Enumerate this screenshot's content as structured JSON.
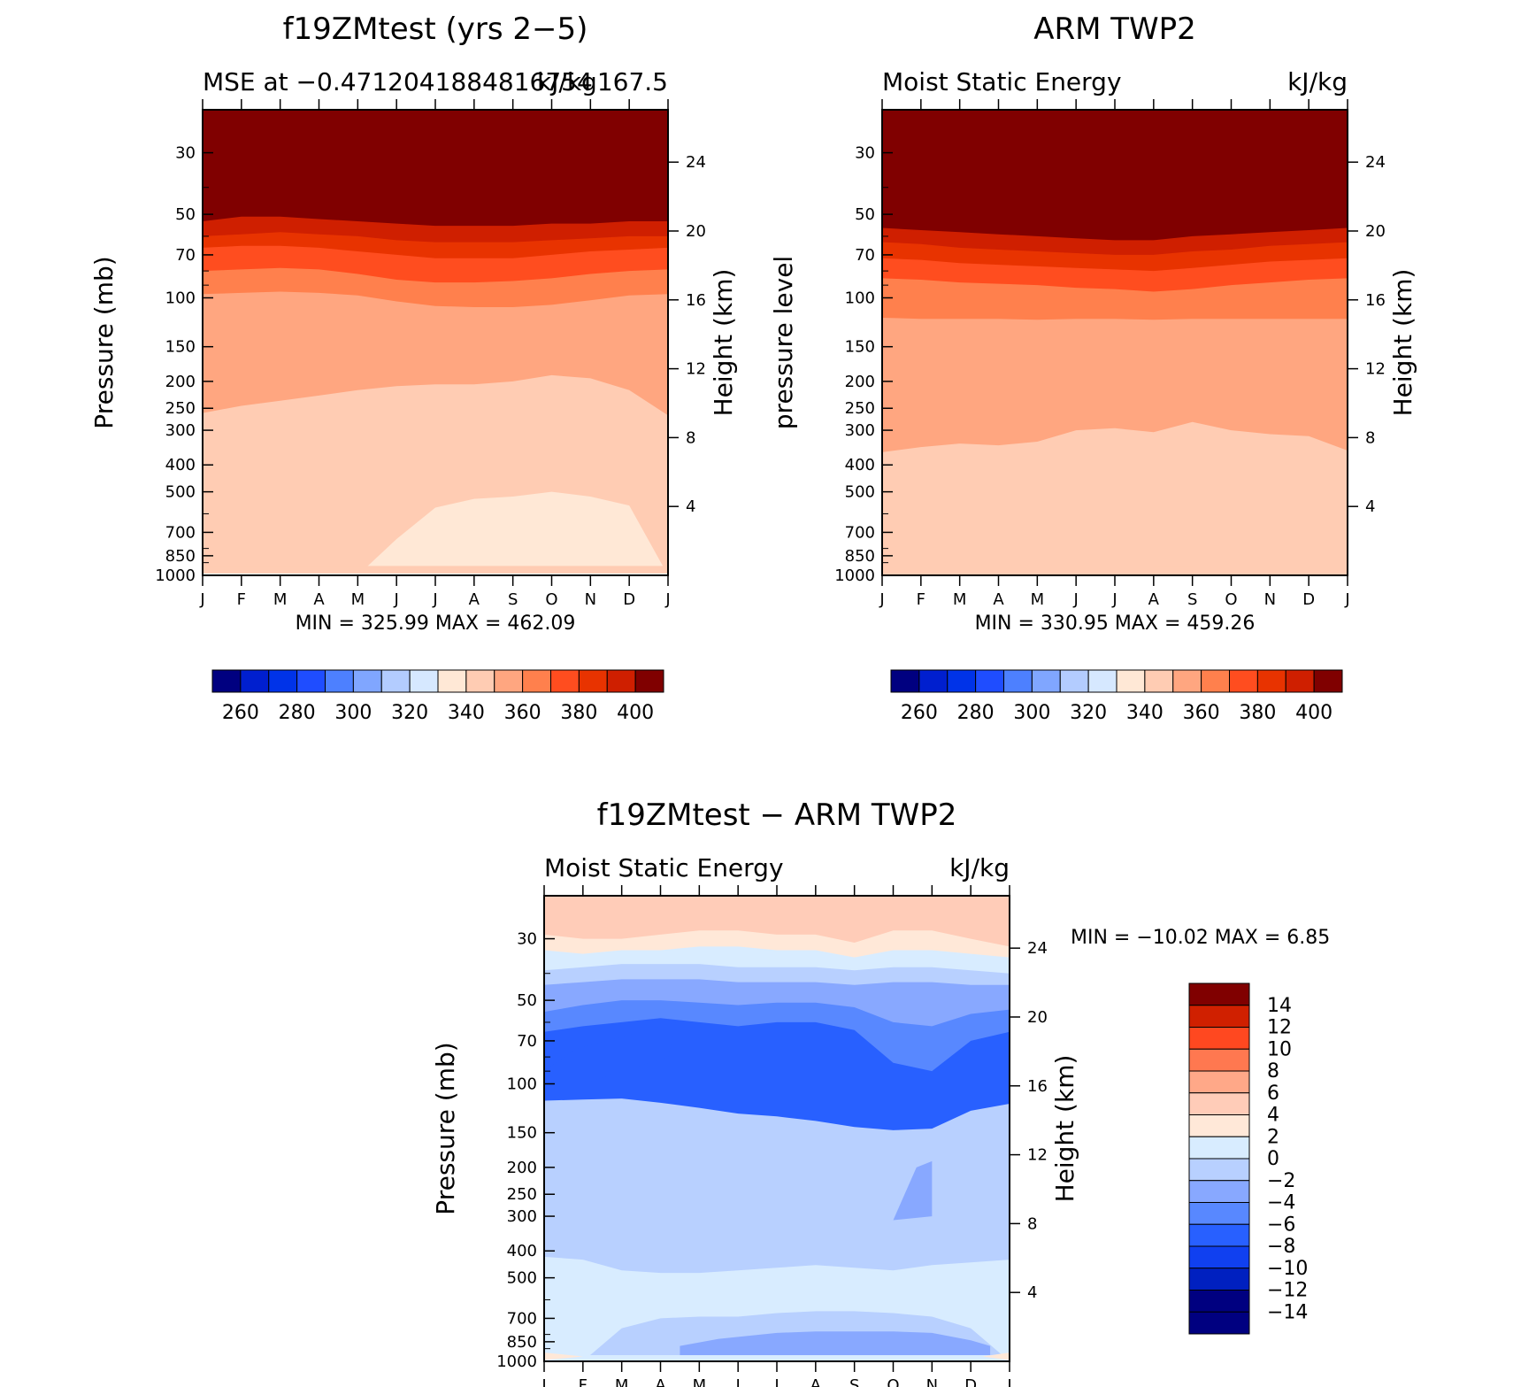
{
  "chart_data": [
    {
      "type": "heatmap",
      "title": "f19ZMtest (yrs 2−5)",
      "left_label": "MSE at −0.4712041884816754",
      "right_label": "kJ/kg167.5",
      "ylabel": "Pressure (mb)",
      "y2label": "Height (km)",
      "x_ticks": [
        "J",
        "F",
        "M",
        "A",
        "M",
        "J",
        "J",
        "A",
        "S",
        "O",
        "N",
        "D",
        "J"
      ],
      "y_ticks": [
        "30",
        "50",
        "70",
        "100",
        "150",
        "200",
        "250",
        "300",
        "400",
        "500",
        "700",
        "850",
        "1000"
      ],
      "y_tick_values": [
        30,
        50,
        70,
        100,
        150,
        200,
        250,
        300,
        400,
        500,
        700,
        850,
        1000
      ],
      "y2_ticks": [
        "24",
        "20",
        "16",
        "12",
        "8",
        "4"
      ],
      "y2_tick_values": [
        24,
        20,
        16,
        12,
        8,
        4
      ],
      "stats": "MIN = 325.99 MAX = 462.09",
      "colorbar_ticks": [
        "260",
        "280",
        "300",
        "320",
        "340",
        "360",
        "380",
        "400"
      ],
      "contour_levels": [
        250,
        260,
        270,
        280,
        290,
        300,
        310,
        320,
        330,
        340,
        350,
        360,
        370,
        380,
        390,
        400
      ],
      "band_boundaries_mb": [
        [
          53,
          51,
          51,
          52,
          53,
          54,
          55,
          55,
          55,
          54,
          54,
          53,
          53
        ],
        [
          60,
          59,
          58,
          59,
          60,
          62,
          63,
          63,
          63,
          62,
          61,
          60,
          60
        ],
        [
          66,
          65,
          65,
          66,
          68,
          70,
          72,
          72,
          72,
          70,
          68,
          67,
          66
        ],
        [
          80,
          79,
          78,
          79,
          82,
          86,
          88,
          88,
          87,
          85,
          82,
          80,
          79
        ],
        [
          97,
          96,
          95,
          96,
          98,
          103,
          107,
          108,
          108,
          106,
          102,
          98,
          97
        ],
        [
          260,
          245,
          235,
          225,
          215,
          208,
          205,
          205,
          200,
          190,
          195,
          215,
          265
        ],
        [
          2000,
          2000,
          2000,
          2000,
          2000,
          740,
          570,
          530,
          520,
          500,
          520,
          560,
          2000
        ]
      ]
    },
    {
      "type": "heatmap",
      "title": "ARM TWP2",
      "left_label": "Moist Static Energy",
      "right_label": "kJ/kg",
      "ylabel": "pressure level",
      "y2label": "Height (km)",
      "x_ticks": [
        "J",
        "F",
        "M",
        "A",
        "M",
        "J",
        "J",
        "A",
        "S",
        "O",
        "N",
        "D",
        "J"
      ],
      "y_ticks": [
        "30",
        "50",
        "70",
        "100",
        "150",
        "200",
        "250",
        "300",
        "400",
        "500",
        "700",
        "850",
        "1000"
      ],
      "y_tick_values": [
        30,
        50,
        70,
        100,
        150,
        200,
        250,
        300,
        400,
        500,
        700,
        850,
        1000
      ],
      "y2_ticks": [
        "24",
        "20",
        "16",
        "12",
        "8",
        "4"
      ],
      "y2_tick_values": [
        24,
        20,
        16,
        12,
        8,
        4
      ],
      "stats": "MIN = 330.95 MAX = 459.26",
      "colorbar_ticks": [
        "260",
        "280",
        "300",
        "320",
        "340",
        "360",
        "380",
        "400"
      ],
      "contour_levels": [
        250,
        260,
        270,
        280,
        290,
        300,
        310,
        320,
        330,
        340,
        350,
        360,
        370,
        380,
        390,
        400
      ],
      "band_boundaries_mb": [
        [
          56,
          57,
          58,
          59,
          60,
          61,
          62,
          62,
          60,
          59,
          58,
          57,
          56
        ],
        [
          63,
          64,
          66,
          67,
          68,
          69,
          70,
          70,
          68,
          67,
          65,
          64,
          63
        ],
        [
          72,
          73,
          75,
          76,
          77,
          78,
          79,
          80,
          78,
          76,
          74,
          73,
          72
        ],
        [
          85,
          86,
          88,
          89,
          90,
          92,
          93,
          95,
          93,
          90,
          88,
          86,
          85
        ],
        [
          118,
          119,
          119,
          119,
          120,
          119,
          119,
          120,
          119,
          119,
          119,
          119,
          119
        ],
        [
          360,
          345,
          335,
          340,
          330,
          300,
          295,
          305,
          280,
          300,
          310,
          315,
          355
        ]
      ]
    },
    {
      "type": "heatmap",
      "title": "f19ZMtest − ARM TWP2",
      "left_label": "Moist Static Energy",
      "right_label": "kJ/kg",
      "ylabel": "Pressure (mb)",
      "y2label": "Height (km)",
      "x_ticks": [
        "J",
        "F",
        "M",
        "A",
        "M",
        "J",
        "J",
        "A",
        "S",
        "O",
        "N",
        "D",
        "J"
      ],
      "y_ticks": [
        "30",
        "50",
        "70",
        "100",
        "150",
        "200",
        "250",
        "300",
        "400",
        "500",
        "700",
        "850",
        "1000"
      ],
      "y_tick_values": [
        30,
        50,
        70,
        100,
        150,
        200,
        250,
        300,
        400,
        500,
        700,
        850,
        1000
      ],
      "y2_ticks": [
        "24",
        "20",
        "16",
        "12",
        "8",
        "4"
      ],
      "y2_tick_values": [
        24,
        20,
        16,
        12,
        8,
        4
      ],
      "stats": "MIN = −10.02 MAX =    6.85",
      "colorbar_ticks": [
        "14",
        "12",
        "10",
        "8",
        "6",
        "4",
        "2",
        "0",
        "−2",
        "−4",
        "−6",
        "−8",
        "−10",
        "−12",
        "−14"
      ],
      "contour_levels": [
        -14,
        -12,
        -10,
        -8,
        -6,
        -4,
        -2,
        0,
        2,
        4,
        6,
        8,
        10,
        12,
        14
      ],
      "band_boundaries_mb": [
        [
          29,
          30,
          30,
          29,
          28,
          28,
          29,
          29,
          31,
          28,
          28,
          30,
          32
        ],
        [
          33,
          34,
          33,
          33,
          32,
          32,
          33,
          33,
          35,
          33,
          33,
          34,
          35
        ],
        [
          39,
          38,
          37,
          37,
          37,
          38,
          38,
          38,
          39,
          38,
          38,
          39,
          40
        ],
        [
          44,
          43,
          42,
          42,
          42,
          43,
          43,
          43,
          44,
          43,
          43,
          44,
          44
        ],
        [
          55,
          52,
          50,
          50,
          51,
          52,
          51,
          51,
          53,
          60,
          62,
          56,
          54
        ],
        [
          65,
          62,
          60,
          58,
          60,
          62,
          60,
          60,
          64,
          84,
          90,
          70,
          65
        ],
        [
          115,
          114,
          113,
          117,
          122,
          128,
          131,
          136,
          143,
          147,
          145,
          125,
          118
        ]
      ]
    }
  ],
  "colors": {
    "palette": [
      "#000080",
      "#001fcf",
      "#0033e8",
      "#1f4dff",
      "#4d80ff",
      "#80a6ff",
      "#b3ccff",
      "#d6e8ff",
      "#ffe8d6",
      "#ffccb3",
      "#ffa680",
      "#ff804d",
      "#ff4d1f",
      "#e83300",
      "#cf1f00",
      "#800000"
    ],
    "diff_palette": [
      "#000080",
      "#0020c0",
      "#1040f0",
      "#2860ff",
      "#5888ff",
      "#88a8ff",
      "#b8d0ff",
      "#d8ecff",
      "#ffe8d8",
      "#ffccb8",
      "#ffa888",
      "#ff7850",
      "#ff4820",
      "#d02000",
      "#800000"
    ]
  }
}
